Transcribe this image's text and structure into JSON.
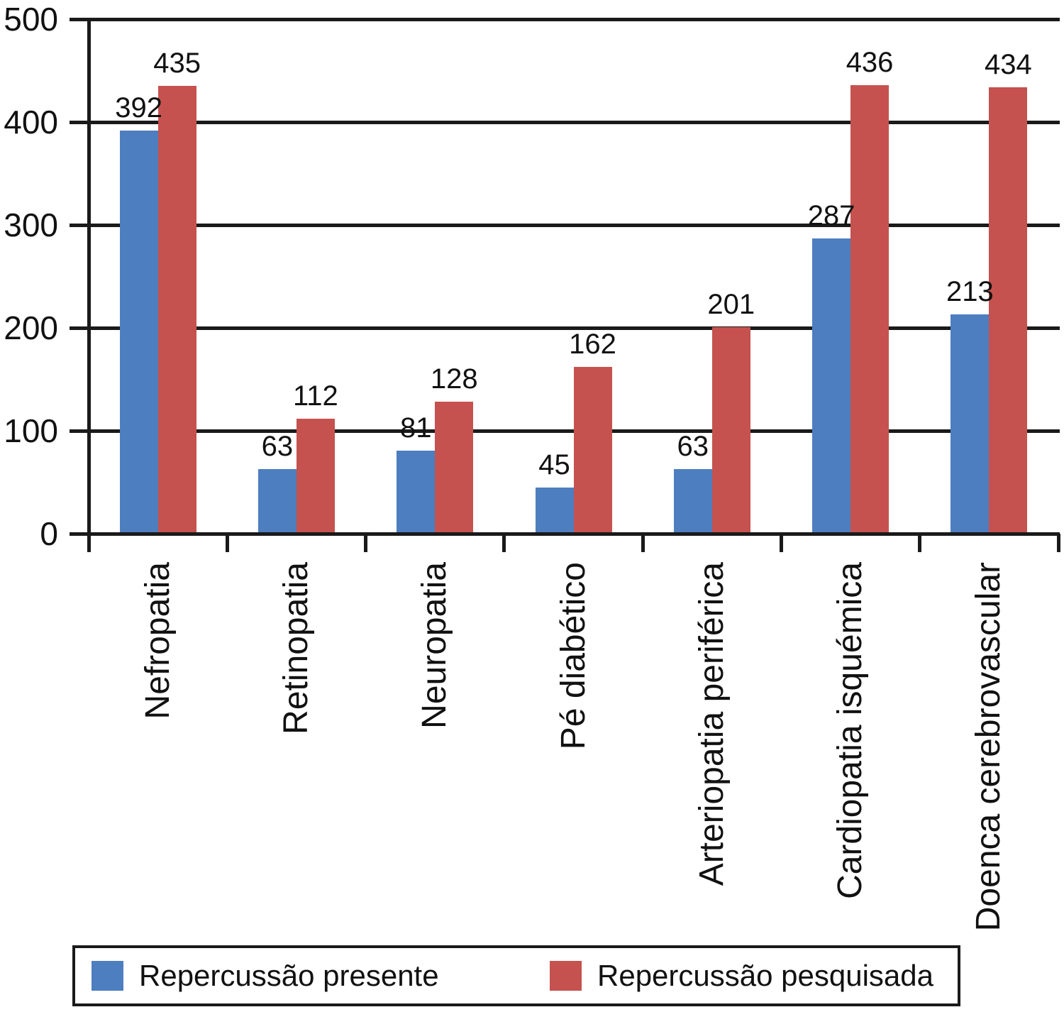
{
  "chart_data": {
    "type": "bar",
    "categories": [
      "Nefropatia",
      "Retinopatia",
      "Neuropatia",
      "Pé diabético",
      "Arteriopatia periférica",
      "Cardiopatia isquémica",
      "Doenca cerebrovascular"
    ],
    "series": [
      {
        "name": "Repercussão presente",
        "color": "#4d7ebf",
        "values": [
          392,
          63,
          81,
          45,
          63,
          287,
          213
        ]
      },
      {
        "name": "Repercussão pesquisada",
        "color": "#c5524e",
        "values": [
          435,
          112,
          128,
          162,
          201,
          436,
          434
        ]
      }
    ],
    "title": "",
    "xlabel": "",
    "ylabel": "",
    "ylim": [
      0,
      500
    ],
    "yticks": [
      0,
      100,
      200,
      300,
      400,
      500
    ],
    "grid": "horizontal",
    "legend_position": "bottom-box",
    "data_labels_shown": true,
    "category_label_rotation": -90
  },
  "legend": {
    "items": [
      {
        "label": "Repercussão presente",
        "color": "#4d7ebf"
      },
      {
        "label": "Repercussão pesquisada",
        "color": "#c5524e"
      }
    ]
  },
  "styles": {
    "background": "#ffffff",
    "line_color": "#1a1a1a",
    "text_color": "#111111"
  }
}
